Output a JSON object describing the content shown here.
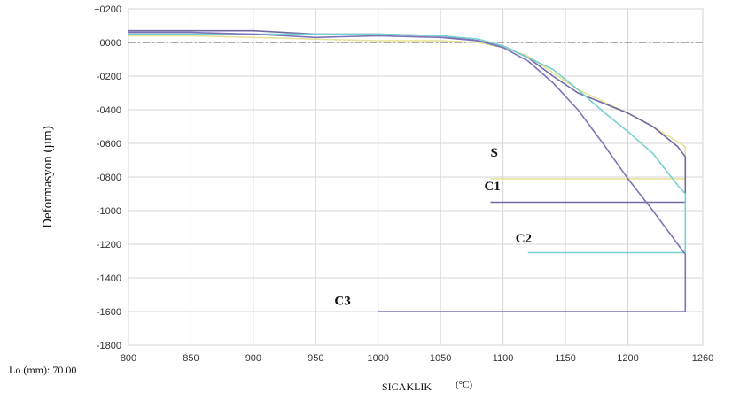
{
  "chart_data": {
    "type": "line",
    "title": "",
    "xlabel": "SICAKLIK",
    "xunit": "(°C)",
    "ylabel": "Deformasyon (µm)",
    "footnote": "Lo (mm): 70.00",
    "xlim": [
      800,
      1260
    ],
    "ylim": [
      -1800,
      200
    ],
    "xticks": [
      "800",
      "850",
      "900",
      "950",
      "1000",
      "1050",
      "1100",
      "1150",
      "1200",
      "1260"
    ],
    "xtick_values": [
      800,
      850,
      900,
      950,
      1000,
      1050,
      1100,
      1150,
      1200,
      1260
    ],
    "yticks": [
      "+0200",
      "0000",
      "-0200",
      "-0400",
      "-0600",
      "-0800",
      "-1000",
      "-1200",
      "-1400",
      "-1600",
      "-1800"
    ],
    "ytick_values": [
      200,
      0,
      -200,
      -400,
      -600,
      -800,
      -1000,
      -1200,
      -1400,
      -1600,
      -1800
    ],
    "grid": true,
    "reference_line": {
      "y": 0,
      "style": "dash-dot"
    },
    "series": [
      {
        "name": "S",
        "color": "#e6e29a",
        "label_at": [
          1090,
          -680
        ],
        "x": [
          800,
          850,
          900,
          950,
          1000,
          1050,
          1080,
          1100,
          1120,
          1140,
          1160,
          1180,
          1200,
          1220,
          1240,
          1246,
          1246,
          1090
        ],
        "y": [
          40,
          40,
          30,
          20,
          10,
          10,
          0,
          -30,
          -80,
          -180,
          -280,
          -350,
          -420,
          -500,
          -590,
          -620,
          -810,
          -810
        ]
      },
      {
        "name": "C1",
        "color": "#6f6aa3",
        "label_at": [
          1085,
          -880
        ],
        "x": [
          800,
          850,
          900,
          950,
          1000,
          1050,
          1080,
          1100,
          1120,
          1140,
          1160,
          1180,
          1200,
          1220,
          1240,
          1246,
          1246,
          1090
        ],
        "y": [
          70,
          70,
          70,
          50,
          50,
          40,
          10,
          -20,
          -90,
          -200,
          -300,
          -360,
          -420,
          -500,
          -620,
          -680,
          -950,
          -950
        ]
      },
      {
        "name": "C2",
        "color": "#7ad0cf",
        "label_at": [
          1110,
          -1190
        ],
        "x": [
          800,
          850,
          900,
          950,
          1000,
          1050,
          1080,
          1100,
          1120,
          1140,
          1160,
          1180,
          1200,
          1220,
          1240,
          1246,
          1246,
          1120
        ],
        "y": [
          50,
          50,
          50,
          50,
          50,
          40,
          20,
          -20,
          -90,
          -160,
          -280,
          -410,
          -530,
          -660,
          -850,
          -900,
          -1250,
          -1250
        ]
      },
      {
        "name": "C3",
        "color": "#7b75b8",
        "label_at": [
          965,
          -1560
        ],
        "x": [
          800,
          850,
          900,
          950,
          1000,
          1050,
          1080,
          1100,
          1120,
          1140,
          1160,
          1180,
          1200,
          1220,
          1240,
          1246,
          1246,
          1000
        ],
        "y": [
          60,
          60,
          50,
          30,
          40,
          30,
          10,
          -30,
          -110,
          -240,
          -400,
          -600,
          -810,
          -1000,
          -1200,
          -1260,
          -1600,
          -1600
        ]
      }
    ]
  }
}
